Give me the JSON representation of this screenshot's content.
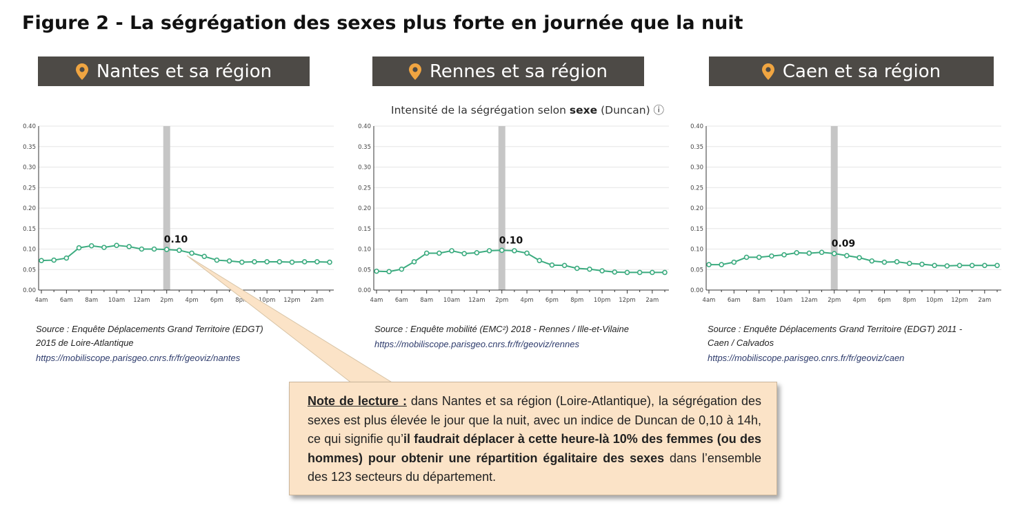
{
  "figure_title": "Figure 2 - La ségrégation des sexes plus forte en journée que la nuit",
  "chart_subtitle": {
    "prefix": "Intensité de la ségrégation selon ",
    "bold": "sexe",
    "suffix": " (Duncan) ⓘ"
  },
  "colors": {
    "header_bg": "#4d4a46",
    "pin": "#f0a541",
    "line": "#3bab7f",
    "highlight": "#c6c6c6",
    "note_bg": "#fbe3c7"
  },
  "chart_data": [
    {
      "type": "line",
      "region": "Nantes et sa région",
      "icon": "location-pin-icon",
      "x_ticks": [
        "4am",
        "6am",
        "8am",
        "10am",
        "12am",
        "2pm",
        "4pm",
        "6pm",
        "8pm",
        "10pm",
        "12pm",
        "2am"
      ],
      "y_ticks": [
        "0.00",
        "0.05",
        "0.10",
        "0.15",
        "0.20",
        "0.25",
        "0.30",
        "0.35",
        "0.40"
      ],
      "ylim": [
        0,
        0.4
      ],
      "values": [
        0.072,
        0.073,
        0.078,
        0.103,
        0.108,
        0.104,
        0.109,
        0.106,
        0.1,
        0.1,
        0.099,
        0.097,
        0.09,
        0.082,
        0.073,
        0.071,
        0.068,
        0.069,
        0.069,
        0.069,
        0.068,
        0.069,
        0.069,
        0.068
      ],
      "highlight_index": 10,
      "highlight_label": "0.10",
      "source": "Source : Enquête Déplacements Grand Territoire (EDGT) 2015 de Loire-Atlantique",
      "url": "https://mobiliscope.parisgeo.cnrs.fr/fr/geoviz/nantes"
    },
    {
      "type": "line",
      "region": "Rennes et sa région",
      "icon": "location-pin-icon",
      "x_ticks": [
        "4am",
        "6am",
        "8am",
        "10am",
        "12am",
        "2pm",
        "4pm",
        "6pm",
        "8pm",
        "10pm",
        "12pm",
        "2am"
      ],
      "y_ticks": [
        "0.00",
        "0.05",
        "0.10",
        "0.15",
        "0.20",
        "0.25",
        "0.30",
        "0.35",
        "0.40"
      ],
      "ylim": [
        0,
        0.4
      ],
      "values": [
        0.046,
        0.045,
        0.051,
        0.069,
        0.09,
        0.09,
        0.096,
        0.089,
        0.091,
        0.096,
        0.097,
        0.096,
        0.09,
        0.072,
        0.061,
        0.06,
        0.053,
        0.051,
        0.047,
        0.044,
        0.043,
        0.043,
        0.043,
        0.043
      ],
      "highlight_index": 10,
      "highlight_label": "0.10",
      "source": "Source : Enquête mobilité (EMC²) 2018 - Rennes / Ille-et-Vilaine",
      "url": "https://mobiliscope.parisgeo.cnrs.fr/fr/geoviz/rennes"
    },
    {
      "type": "line",
      "region": "Caen et sa région",
      "icon": "location-pin-icon",
      "x_ticks": [
        "4am",
        "6am",
        "8am",
        "10am",
        "12am",
        "2pm",
        "4pm",
        "6pm",
        "8pm",
        "10pm",
        "12pm",
        "2am"
      ],
      "y_ticks": [
        "0.00",
        "0.05",
        "0.10",
        "0.15",
        "0.20",
        "0.25",
        "0.30",
        "0.35",
        "0.40"
      ],
      "ylim": [
        0,
        0.4
      ],
      "values": [
        0.062,
        0.062,
        0.068,
        0.08,
        0.08,
        0.083,
        0.086,
        0.091,
        0.09,
        0.092,
        0.089,
        0.084,
        0.079,
        0.071,
        0.068,
        0.069,
        0.065,
        0.063,
        0.06,
        0.059,
        0.06,
        0.06,
        0.06,
        0.06
      ],
      "highlight_index": 10,
      "highlight_label": "0.09",
      "source": "Source : Enquête Déplacements Grand Territoire (EDGT) 2011 - Caen / Calvados",
      "url": "https://mobiliscope.parisgeo.cnrs.fr/fr/geoviz/caen"
    }
  ],
  "note": {
    "label": "Note de lecture :",
    "text1": " dans Nantes et sa région (Loire-Atlantique), la ségrégation des sexes est plus élevée le jour que la nuit, avec un indice de Duncan de 0,10 à 14h, ce qui signifie qu’",
    "bold": "il faudrait déplacer à cette heure-là 10% des femmes (ou des hommes) pour obtenir une répartition égalitaire des sexes",
    "text2": " dans l’ensemble des 123 secteurs du département."
  }
}
